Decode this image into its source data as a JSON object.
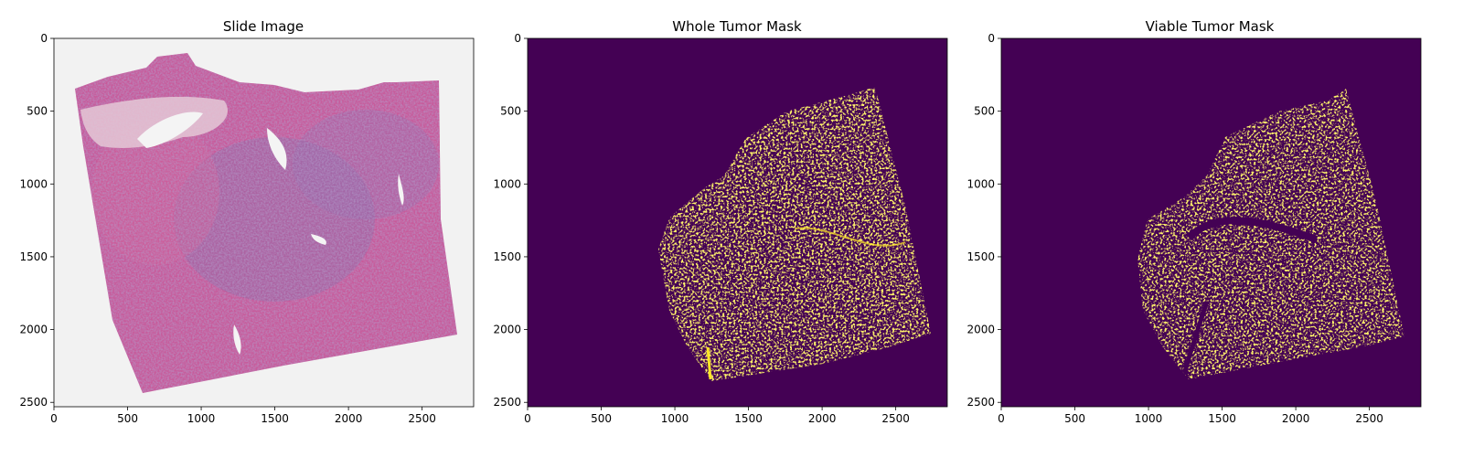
{
  "figure": {
    "panels": [
      {
        "id": "slide",
        "title": "Slide Image",
        "kind": "photo"
      },
      {
        "id": "whole",
        "title": "Whole Tumor Mask",
        "kind": "mask"
      },
      {
        "id": "viable",
        "title": "Viable Tumor Mask",
        "kind": "mask"
      }
    ],
    "x_ticks": [
      "0",
      "500",
      "1000",
      "1500",
      "2000",
      "2500"
    ],
    "y_ticks": [
      "0",
      "500",
      "1000",
      "1500",
      "2000",
      "2500"
    ],
    "colors": {
      "mask_background": "#440154",
      "mask_foreground": "#fde725",
      "tissue_pink": "#c85a9a",
      "tissue_purple": "#7f63a8",
      "slide_background": "#f2f2f2"
    }
  },
  "chart_data": [
    {
      "type": "heatmap",
      "title": "Slide Image",
      "xlim": [
        0,
        2850
      ],
      "ylim": [
        2530,
        0
      ],
      "xticks": [
        0,
        500,
        1000,
        1500,
        2000,
        2500
      ],
      "yticks": [
        0,
        500,
        1000,
        1500,
        2000,
        2500
      ],
      "content": "H&E stained whole-slide tissue image"
    },
    {
      "type": "heatmap",
      "title": "Whole Tumor Mask",
      "xlim": [
        0,
        2850
      ],
      "ylim": [
        2530,
        0
      ],
      "xticks": [
        0,
        500,
        1000,
        1500,
        2000,
        2500
      ],
      "yticks": [
        0,
        500,
        1000,
        1500,
        2000,
        2500
      ],
      "content": "binary mask"
    },
    {
      "type": "heatmap",
      "title": "Viable Tumor Mask",
      "xlim": [
        0,
        2850
      ],
      "ylim": [
        2530,
        0
      ],
      "xticks": [
        0,
        500,
        1000,
        1500,
        2000,
        2500
      ],
      "yticks": [
        0,
        500,
        1000,
        1500,
        2000,
        2500
      ],
      "content": "binary mask"
    }
  ]
}
